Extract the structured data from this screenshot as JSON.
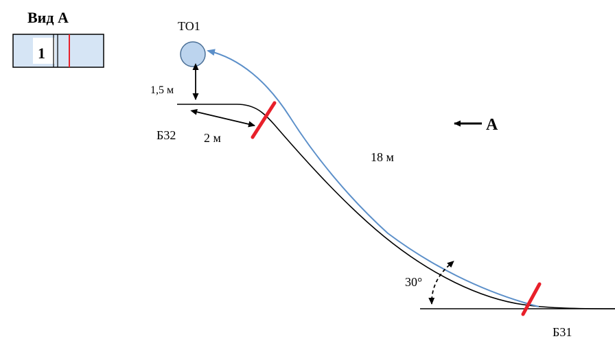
{
  "view": {
    "title": "Вид А",
    "track_number": "1"
  },
  "labels": {
    "to1": "ТО1",
    "height": "1,5 м",
    "b32": "Б32",
    "b32_distance": "2 м",
    "path_length": "18 м",
    "direction": "А",
    "angle": "30°",
    "b31": "Б31"
  },
  "colors": {
    "ground_line": "#000000",
    "rope_line": "#5b8fc9",
    "marker": "#e8202a",
    "circle_fill": "#bcd4ee",
    "view_box_fill": "#d6e5f5"
  }
}
